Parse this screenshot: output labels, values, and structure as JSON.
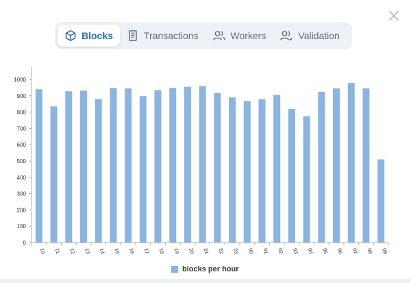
{
  "colors": {
    "accent": "#2a6db3",
    "bar": "#8ab4e2",
    "tab_bg": "#eef2f7"
  },
  "close_button": {
    "icon": "close-icon"
  },
  "tabs": [
    {
      "label": "Blocks",
      "icon": "cube-icon",
      "active": true
    },
    {
      "label": "Transactions",
      "icon": "receipt-icon",
      "active": false
    },
    {
      "label": "Workers",
      "icon": "users-icon",
      "active": false
    },
    {
      "label": "Validation",
      "icon": "users-check-icon",
      "active": false
    }
  ],
  "chart_data": {
    "type": "bar",
    "categories": [
      "10",
      "11",
      "12",
      "13",
      "14",
      "15",
      "16",
      "17",
      "18",
      "19",
      "20",
      "21",
      "22",
      "23",
      "00",
      "01",
      "02",
      "03",
      "04",
      "05",
      "06",
      "07",
      "08",
      "09"
    ],
    "series": [
      {
        "name": "blocks per hour",
        "values": [
          940,
          835,
          928,
          932,
          880,
          948,
          945,
          898,
          935,
          948,
          955,
          958,
          917,
          890,
          868,
          880,
          905,
          820,
          775,
          925,
          945,
          978,
          945,
          510
        ]
      }
    ],
    "yticks": [
      0,
      100,
      200,
      300,
      400,
      500,
      600,
      700,
      800,
      900,
      1000
    ],
    "ylim": [
      0,
      1000
    ],
    "xlabel": "",
    "ylabel": "",
    "legend_position": "bottom",
    "grid": false
  }
}
